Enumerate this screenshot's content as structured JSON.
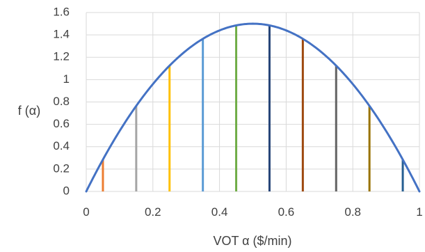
{
  "chart_data": {
    "type": "line",
    "title": "",
    "xlabel": "VOT α ($/min)",
    "ylabel": "f (α)",
    "xlim": [
      0,
      1
    ],
    "ylim": [
      0,
      1.6
    ],
    "x_ticks": [
      0,
      0.2,
      0.4,
      0.6,
      0.8,
      1
    ],
    "x_tick_labels": [
      "0",
      "0.2",
      "0.4",
      "0.6",
      "0.8",
      "1"
    ],
    "y_ticks": [
      0,
      0.2,
      0.4,
      0.6,
      0.8,
      1,
      1.2,
      1.4,
      1.6
    ],
    "y_tick_labels": [
      "0",
      "0.2",
      "0.4",
      "0.6",
      "0.8",
      "1",
      "1.2",
      "1.4",
      "1.6"
    ],
    "grid": true,
    "legend": "none",
    "curve": {
      "function": "6*a*(1-a)",
      "color": "#4472C4",
      "x": [
        0,
        0.05,
        0.1,
        0.15,
        0.2,
        0.25,
        0.3,
        0.35,
        0.4,
        0.45,
        0.5,
        0.55,
        0.6,
        0.65,
        0.7,
        0.75,
        0.8,
        0.85,
        0.9,
        0.95,
        1
      ],
      "y": [
        0,
        0.285,
        0.54,
        0.765,
        0.96,
        1.125,
        1.26,
        1.365,
        1.44,
        1.485,
        1.5,
        1.485,
        1.44,
        1.365,
        1.26,
        1.125,
        0.96,
        0.765,
        0.54,
        0.285,
        0
      ]
    },
    "vertical_lines": [
      {
        "x": 0.05,
        "y": 0.285,
        "color": "#ED7D31"
      },
      {
        "x": 0.15,
        "y": 0.765,
        "color": "#A5A5A5"
      },
      {
        "x": 0.25,
        "y": 1.125,
        "color": "#FFC000"
      },
      {
        "x": 0.35,
        "y": 1.365,
        "color": "#5B9BD5"
      },
      {
        "x": 0.45,
        "y": 1.485,
        "color": "#70AD47"
      },
      {
        "x": 0.55,
        "y": 1.485,
        "color": "#264478"
      },
      {
        "x": 0.65,
        "y": 1.365,
        "color": "#9E480E"
      },
      {
        "x": 0.75,
        "y": 1.125,
        "color": "#636363"
      },
      {
        "x": 0.85,
        "y": 0.765,
        "color": "#997300"
      },
      {
        "x": 0.95,
        "y": 0.285,
        "color": "#255E91"
      }
    ]
  }
}
